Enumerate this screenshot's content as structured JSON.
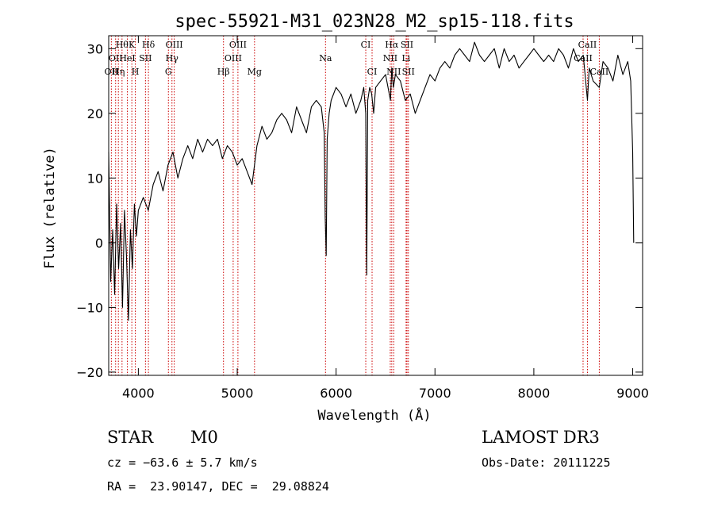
{
  "chart_data": {
    "type": "line",
    "title": "spec-55921-M31_023N28_M2_sp15-118.fits",
    "xlabel": "Wavelength (Å)",
    "ylabel": "Flux (relative)",
    "xlim": [
      3700,
      9100
    ],
    "ylim": [
      -20.5,
      32
    ],
    "xticks": [
      4000,
      5000,
      6000,
      7000,
      8000,
      9000
    ],
    "yticks": [
      -20,
      -10,
      0,
      10,
      20,
      30
    ],
    "series": [
      {
        "name": "spectrum",
        "x": [
          3700,
          3720,
          3740,
          3760,
          3780,
          3800,
          3820,
          3840,
          3860,
          3880,
          3900,
          3920,
          3940,
          3960,
          3980,
          4000,
          4050,
          4100,
          4150,
          4200,
          4250,
          4300,
          4350,
          4400,
          4450,
          4500,
          4550,
          4600,
          4650,
          4700,
          4750,
          4800,
          4850,
          4900,
          4950,
          5000,
          5050,
          5100,
          5150,
          5200,
          5250,
          5300,
          5350,
          5400,
          5450,
          5500,
          5550,
          5600,
          5650,
          5700,
          5750,
          5800,
          5850,
          5880,
          5890,
          5900,
          5910,
          5930,
          5950,
          6000,
          6050,
          6100,
          6150,
          6200,
          6250,
          6280,
          6300,
          6310,
          6320,
          6340,
          6360,
          6380,
          6400,
          6450,
          6500,
          6550,
          6563,
          6580,
          6600,
          6650,
          6700,
          6750,
          6800,
          6850,
          6900,
          6950,
          7000,
          7050,
          7100,
          7150,
          7200,
          7250,
          7300,
          7350,
          7400,
          7450,
          7500,
          7550,
          7600,
          7650,
          7700,
          7750,
          7800,
          7850,
          7900,
          7950,
          8000,
          8050,
          8100,
          8150,
          8200,
          8250,
          8300,
          8350,
          8400,
          8450,
          8500,
          8542,
          8560,
          8600,
          8662,
          8700,
          8750,
          8800,
          8850,
          8900,
          8950,
          8980,
          9000,
          9010
        ],
        "y": [
          14,
          -6,
          2,
          -8,
          6,
          -4,
          3,
          -10,
          5,
          -2,
          -12,
          2,
          -4,
          6,
          1,
          5,
          7,
          5,
          9,
          11,
          8,
          12,
          14,
          10,
          13,
          15,
          13,
          16,
          14,
          16,
          15,
          16,
          13,
          15,
          14,
          12,
          13,
          11,
          9,
          15,
          18,
          16,
          17,
          19,
          20,
          19,
          17,
          21,
          19,
          17,
          21,
          22,
          21,
          17,
          4,
          -2,
          16,
          20,
          22,
          24,
          23,
          21,
          23,
          20,
          22,
          24,
          20,
          -5,
          22,
          24,
          23,
          20,
          24,
          25,
          26,
          22,
          27,
          24,
          26,
          25,
          22,
          23,
          20,
          22,
          24,
          26,
          25,
          27,
          28,
          27,
          29,
          30,
          29,
          28,
          31,
          29,
          28,
          29,
          30,
          27,
          30,
          28,
          29,
          27,
          28,
          29,
          30,
          29,
          28,
          29,
          28,
          30,
          29,
          27,
          30,
          28,
          29,
          22,
          27,
          25,
          24,
          28,
          27,
          25,
          29,
          26,
          28,
          25,
          14,
          0
        ]
      }
    ],
    "spectral_lines": [
      {
        "wl": 3727,
        "label": "OII",
        "row": 2
      },
      {
        "wl": 3770,
        "label": "OII",
        "row": 1
      },
      {
        "wl": 3798,
        "label": "Hη",
        "row": 2
      },
      {
        "wl": 3835,
        "label": "Hθ",
        "row": 0
      },
      {
        "wl": 3889,
        "label": "HeI",
        "row": 1
      },
      {
        "wl": 3934,
        "label": "K",
        "row": 0
      },
      {
        "wl": 3969,
        "label": "H",
        "row": 2
      },
      {
        "wl": 4072,
        "label": "SII",
        "row": 1
      },
      {
        "wl": 4102,
        "label": "Hδ",
        "row": 0
      },
      {
        "wl": 4304,
        "label": "G",
        "row": 2
      },
      {
        "wl": 4340,
        "label": "Hγ",
        "row": 1
      },
      {
        "wl": 4363,
        "label": "OIII",
        "row": 0
      },
      {
        "wl": 4861,
        "label": "Hβ",
        "row": 2
      },
      {
        "wl": 4959,
        "label": "OIII",
        "row": 1
      },
      {
        "wl": 5007,
        "label": "OIII",
        "row": 0
      },
      {
        "wl": 5175,
        "label": "Mg",
        "row": 2
      },
      {
        "wl": 5893,
        "label": "Na",
        "row": 1
      },
      {
        "wl": 6300,
        "label": "CI",
        "row": 0
      },
      {
        "wl": 6364,
        "label": "CI",
        "row": 2
      },
      {
        "wl": 6548,
        "label": "NII",
        "row": 1
      },
      {
        "wl": 6563,
        "label": "Hα",
        "row": 0
      },
      {
        "wl": 6583,
        "label": "NII",
        "row": 2
      },
      {
        "wl": 6708,
        "label": "Li",
        "row": 1
      },
      {
        "wl": 6717,
        "label": "SII",
        "row": 0
      },
      {
        "wl": 6731,
        "label": "SII",
        "row": 2
      },
      {
        "wl": 8498,
        "label": "CaII",
        "row": 1
      },
      {
        "wl": 8542,
        "label": "CaII",
        "row": 0
      },
      {
        "wl": 8662,
        "label": "CaII",
        "row": 2
      }
    ],
    "line_color": "#000000",
    "marker_color": "#cc0000"
  },
  "footer": {
    "class_label": "STAR",
    "subclass": "M0",
    "survey": "LAMOST DR3",
    "cz": "cz = −63.6 ± 5.7 km/s",
    "obs_date": "Obs-Date: 20111225",
    "coords": "RA =  23.90147, DEC =  29.08824"
  }
}
